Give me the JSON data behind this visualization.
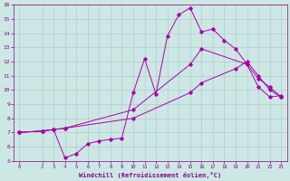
{
  "xlabel": "Windchill (Refroidissement éolien,°C)",
  "xlim": [
    -0.5,
    23.5
  ],
  "ylim": [
    5,
    16
  ],
  "xticks": [
    0,
    2,
    3,
    4,
    5,
    6,
    7,
    8,
    9,
    10,
    11,
    12,
    13,
    14,
    15,
    16,
    17,
    18,
    19,
    20,
    21,
    22,
    23
  ],
  "yticks": [
    5,
    6,
    7,
    8,
    9,
    10,
    11,
    12,
    13,
    14,
    15,
    16
  ],
  "bg_color": "#cde8e4",
  "grid_color": "#b0cccc",
  "line_color": "#aa00aa",
  "line1_x": [
    0,
    2,
    3,
    4,
    5,
    6,
    7,
    8,
    9,
    10,
    11,
    12,
    13,
    14,
    15,
    16,
    17,
    18,
    19,
    20,
    21,
    22,
    23
  ],
  "line1_y": [
    7.0,
    7.1,
    7.2,
    5.2,
    5.5,
    6.2,
    6.4,
    6.5,
    6.6,
    9.8,
    12.2,
    9.7,
    13.8,
    15.3,
    15.8,
    14.1,
    14.3,
    13.5,
    12.9,
    11.8,
    10.2,
    9.5,
    9.6
  ],
  "line2_x": [
    0,
    2,
    3,
    4,
    10,
    15,
    16,
    20,
    21,
    22,
    23
  ],
  "line2_y": [
    7.0,
    7.1,
    7.2,
    7.3,
    8.6,
    11.8,
    12.9,
    11.8,
    10.8,
    10.2,
    9.5
  ],
  "line3_x": [
    0,
    2,
    3,
    4,
    10,
    15,
    16,
    19,
    20,
    21,
    22,
    23
  ],
  "line3_y": [
    7.0,
    7.1,
    7.2,
    7.3,
    8.0,
    9.8,
    10.5,
    11.5,
    12.0,
    11.0,
    10.0,
    9.5
  ]
}
